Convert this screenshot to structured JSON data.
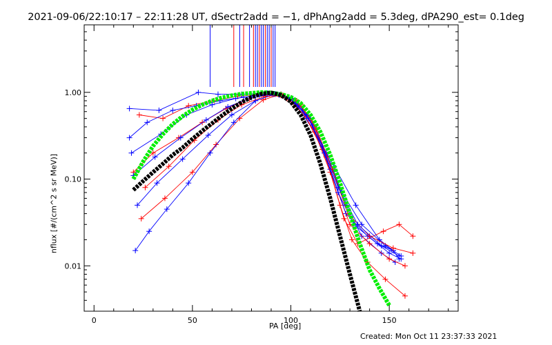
{
  "title": "2021-09-06/22:10:17 – 22:11:28 UT, dSectr2add = −1, dPhAng2add = 5.3deg, dPA290_est=  0.1deg",
  "footer": "Created: Mon Oct 11 23:37:33 2021",
  "colors": {
    "red": "#ff0000",
    "blue": "#0000ff",
    "green": "#00ee00",
    "black": "#000000"
  },
  "chart_data": {
    "type": "line",
    "title": "2021-09-06/22:10:17 – 22:11:28 UT, dSectr2add = −1, dPhAng2add = 5.3deg, dPA290_est=  0.1deg",
    "xlabel": "PA [deg]",
    "ylabel": "nflux [#/(cm^2 s sr MeV)]",
    "xlim": [
      -5,
      185
    ],
    "ylim": [
      0.003,
      6
    ],
    "yscale": "log",
    "xticks": [
      {
        "v": 0,
        "label": "0"
      },
      {
        "v": 50,
        "label": "50"
      },
      {
        "v": 100,
        "label": "100"
      },
      {
        "v": 150,
        "label": "150"
      }
    ],
    "yticks": [
      {
        "v": 0.01,
        "label": "0.01"
      },
      {
        "v": 0.1,
        "label": "0.10"
      },
      {
        "v": 1,
        "label": "1.00"
      }
    ],
    "vertical_lines": [
      {
        "x": 59,
        "color": "blue"
      },
      {
        "x": 71,
        "color": "red"
      },
      {
        "x": 74,
        "color": "blue"
      },
      {
        "x": 76,
        "color": "red"
      },
      {
        "x": 79,
        "color": "blue"
      },
      {
        "x": 81,
        "color": "red"
      },
      {
        "x": 82,
        "color": "blue"
      },
      {
        "x": 83,
        "color": "blue"
      },
      {
        "x": 84,
        "color": "red"
      },
      {
        "x": 85,
        "color": "blue"
      },
      {
        "x": 86,
        "color": "blue"
      },
      {
        "x": 87,
        "color": "red"
      },
      {
        "x": 88,
        "color": "blue"
      },
      {
        "x": 89,
        "color": "blue"
      },
      {
        "x": 90,
        "color": "red"
      },
      {
        "x": 91,
        "color": "blue"
      },
      {
        "x": 92,
        "color": "blue"
      }
    ],
    "series": [
      {
        "color": "blue",
        "x": [
          18,
          33,
          53,
          63,
          75,
          88,
          95,
          103,
          112,
          122,
          133,
          145,
          152,
          155
        ],
        "y": [
          0.65,
          0.62,
          1.0,
          0.95,
          0.95,
          0.98,
          0.95,
          0.7,
          0.35,
          0.14,
          0.05,
          0.02,
          0.015,
          0.012
        ]
      },
      {
        "color": "red",
        "x": [
          23,
          35,
          48,
          61,
          73,
          85,
          95,
          104,
          112,
          120,
          127,
          134,
          147,
          155,
          162
        ],
        "y": [
          0.55,
          0.5,
          0.7,
          0.8,
          0.9,
          0.95,
          0.92,
          0.7,
          0.35,
          0.12,
          0.035,
          0.018,
          0.025,
          0.03,
          0.022
        ]
      },
      {
        "color": "blue",
        "x": [
          18,
          27,
          40,
          52,
          64,
          76,
          88,
          97,
          104,
          112,
          120,
          128,
          136,
          146,
          153
        ],
        "y": [
          0.3,
          0.45,
          0.62,
          0.7,
          0.8,
          0.88,
          0.95,
          0.9,
          0.72,
          0.4,
          0.15,
          0.05,
          0.022,
          0.014,
          0.011
        ]
      },
      {
        "color": "red",
        "x": [
          20,
          30,
          43,
          55,
          67,
          79,
          89,
          98,
          107,
          116,
          124,
          130,
          140,
          150,
          158
        ],
        "y": [
          0.12,
          0.2,
          0.3,
          0.45,
          0.65,
          0.85,
          0.95,
          0.85,
          0.55,
          0.22,
          0.07,
          0.03,
          0.018,
          0.012,
          0.01
        ]
      },
      {
        "color": "blue",
        "x": [
          22,
          32,
          45,
          58,
          70,
          82,
          92,
          101,
          110,
          118,
          126,
          136,
          148,
          156
        ],
        "y": [
          0.05,
          0.09,
          0.17,
          0.32,
          0.55,
          0.8,
          0.95,
          0.85,
          0.5,
          0.2,
          0.07,
          0.03,
          0.017,
          0.013
        ]
      },
      {
        "color": "red",
        "x": [
          24,
          36,
          50,
          62,
          74,
          86,
          95,
          103,
          111,
          118,
          125,
          131,
          139,
          148,
          158
        ],
        "y": [
          0.035,
          0.06,
          0.12,
          0.25,
          0.5,
          0.82,
          0.95,
          0.8,
          0.45,
          0.18,
          0.05,
          0.02,
          0.011,
          0.007,
          0.0045
        ]
      },
      {
        "color": "blue",
        "x": [
          21,
          28,
          37,
          48,
          59,
          71,
          82,
          92,
          100,
          109,
          117,
          124,
          132,
          144,
          152
        ],
        "y": [
          0.015,
          0.025,
          0.045,
          0.09,
          0.2,
          0.45,
          0.8,
          0.96,
          0.85,
          0.5,
          0.2,
          0.07,
          0.03,
          0.018,
          0.015
        ]
      },
      {
        "color": "blue",
        "x": [
          19,
          34,
          47,
          60,
          72,
          84,
          94,
          102,
          111,
          120,
          128,
          139,
          150,
          156
        ],
        "y": [
          0.2,
          0.33,
          0.55,
          0.72,
          0.85,
          0.93,
          0.93,
          0.78,
          0.42,
          0.13,
          0.04,
          0.022,
          0.014,
          0.012
        ]
      },
      {
        "color": "red",
        "x": [
          26,
          38,
          51,
          63,
          75,
          87,
          96,
          105,
          113,
          121,
          129,
          140,
          152,
          162
        ],
        "y": [
          0.08,
          0.14,
          0.28,
          0.48,
          0.72,
          0.9,
          0.92,
          0.72,
          0.38,
          0.13,
          0.04,
          0.022,
          0.016,
          0.014
        ]
      },
      {
        "color": "blue",
        "x": [
          20,
          31,
          44,
          57,
          68,
          80,
          91,
          99,
          108,
          116,
          124,
          134,
          146,
          155
        ],
        "y": [
          0.11,
          0.18,
          0.3,
          0.48,
          0.68,
          0.87,
          0.95,
          0.88,
          0.55,
          0.24,
          0.08,
          0.03,
          0.017,
          0.013
        ]
      }
    ],
    "fit_curves": [
      {
        "color": "green",
        "x": [
          20,
          25,
          30,
          35,
          40,
          45,
          50,
          55,
          60,
          65,
          70,
          75,
          80,
          85,
          90,
          95,
          100,
          105,
          110,
          115,
          120,
          125,
          130,
          135,
          140,
          145,
          150
        ],
        "y": [
          0.1,
          0.16,
          0.24,
          0.33,
          0.43,
          0.53,
          0.63,
          0.72,
          0.8,
          0.87,
          0.92,
          0.96,
          0.98,
          1.0,
          0.99,
          0.95,
          0.88,
          0.75,
          0.55,
          0.35,
          0.19,
          0.09,
          0.04,
          0.018,
          0.009,
          0.0055,
          0.0035
        ]
      },
      {
        "color": "black",
        "x": [
          20,
          25,
          30,
          35,
          40,
          45,
          50,
          55,
          60,
          65,
          70,
          75,
          80,
          85,
          90,
          95,
          100,
          105,
          110,
          115,
          120,
          125,
          130,
          135
        ],
        "y": [
          0.075,
          0.095,
          0.12,
          0.15,
          0.19,
          0.23,
          0.29,
          0.36,
          0.44,
          0.54,
          0.65,
          0.77,
          0.88,
          0.96,
          0.99,
          0.93,
          0.78,
          0.55,
          0.32,
          0.15,
          0.06,
          0.022,
          0.008,
          0.003
        ]
      }
    ]
  }
}
